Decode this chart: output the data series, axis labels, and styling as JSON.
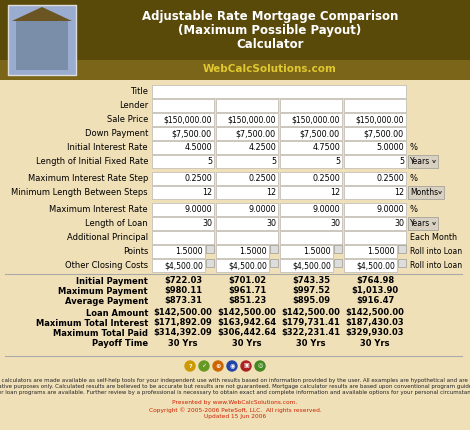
{
  "title_line1": "Adjustable Rate Mortgage Comparison",
  "title_line2": "(Maximum Possible Payout)",
  "title_line3": "Calculator",
  "subtitle": "WebCalcSolutions.com",
  "header_dark": "#5A4A0A",
  "header_mid": "#7A6518",
  "header_light": "#A08828",
  "body_bg": "#F0E0B8",
  "input_bg": "#FFFFFF",
  "title_color": "#FFFFFF",
  "subtitle_color": "#E0C830",
  "result_labels": [
    "Initial Payment",
    "Maximum Payment",
    "Average Payment",
    "Loan Amount",
    "Maximum Total Interest",
    "Maximum Total Paid",
    "Payoff Time"
  ],
  "result_col1": [
    "$722.03",
    "$980.11",
    "$873.31",
    "$142,500.00",
    "$171,892.09",
    "$314,392.09",
    "30 Yrs"
  ],
  "result_col2": [
    "$701.02",
    "$961.71",
    "$851.23",
    "$142,500.00",
    "$163,942.64",
    "$306,442.64",
    "30 Yrs"
  ],
  "result_col3": [
    "$743.35",
    "$997.52",
    "$895.09",
    "$142,500.00",
    "$179,731.41",
    "$322,231.41",
    "30 Yrs"
  ],
  "result_col4": [
    "$764.98",
    "$1,013.90",
    "$916.47",
    "$142,500.00",
    "$187,430.03",
    "$329,930.03",
    "30 Yrs"
  ],
  "footer_line1": "All calculators are made available as self-help tools for your independent use with results based on information provided by the user. All examples are hypothetical and are for",
  "footer_line2": "illustrative purposes only. Calculated results are believed to be accurate but results are not guaranteed. Mortgage calculator results are based upon conventional program guidelines.",
  "footer_line3": "Other loan programs are available. Further review by a professional is necessary to obtain exact and complete information and available options for your personal circumstances.",
  "presented_by": "Presented by www.WebCalcSolutions.com.",
  "copyright": "Copyright © 2005-2006 PeteSoft, LLC.  All rights reserved.",
  "updated": "Updated 15 Jun 2006"
}
